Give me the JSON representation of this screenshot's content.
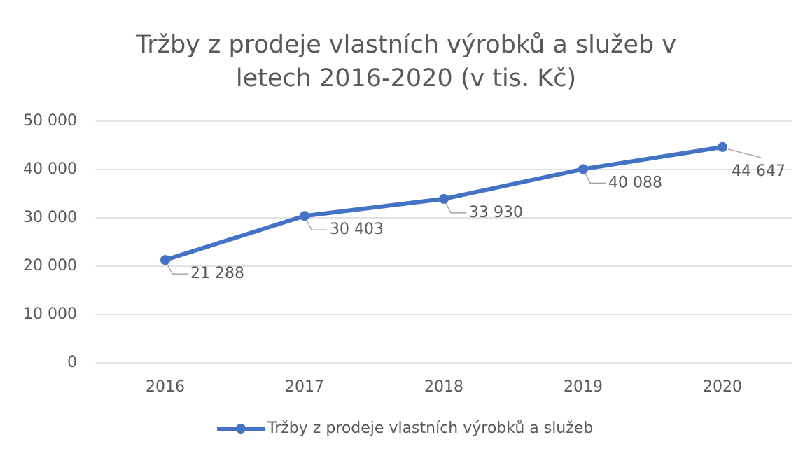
{
  "chart_data": {
    "type": "line",
    "title": "Tržby z prodeje vlastních výrobků a služeb v letech 2016-2020 (v tis. Kč)",
    "categories": [
      "2016",
      "2017",
      "2018",
      "2019",
      "2020"
    ],
    "series": [
      {
        "name": "Tržby z prodeje vlastních výrobků a služeb",
        "color": "#4472c4",
        "values": [
          21288,
          30403,
          33930,
          40088,
          44647
        ],
        "value_labels": [
          "21 288",
          "30 403",
          "33 930",
          "40 088",
          "44 647"
        ]
      }
    ],
    "ylim": [
      0,
      50000
    ],
    "yticks": [
      {
        "value": 0,
        "label": "0"
      },
      {
        "value": 10000,
        "label": "10 000"
      },
      {
        "value": 20000,
        "label": "20 000"
      },
      {
        "value": 30000,
        "label": "30 000"
      },
      {
        "value": 40000,
        "label": "40 000"
      },
      {
        "value": 50000,
        "label": "50 000"
      }
    ],
    "grid": true,
    "legend": "bottom"
  }
}
